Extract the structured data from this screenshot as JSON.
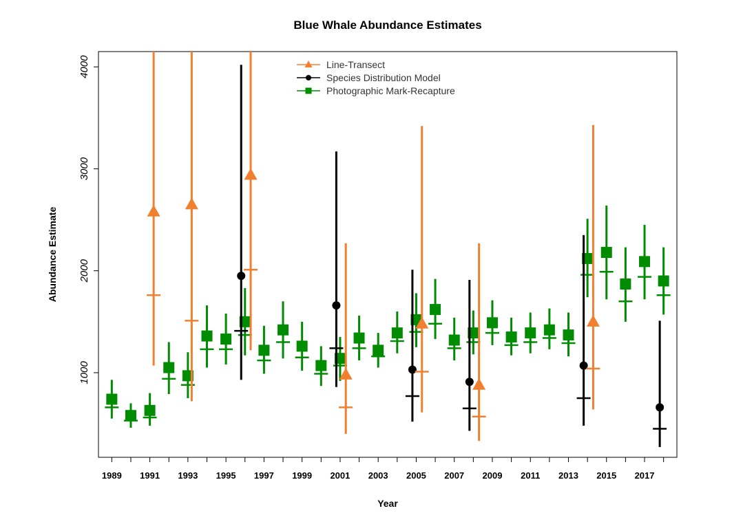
{
  "chart_data": {
    "type": "scatter",
    "title": "Blue Whale Abundance Estimates",
    "xlabel": "Year",
    "ylabel": "Abundance Estimate",
    "xlim": [
      1988.3,
      2018.7
    ],
    "ylim": [
      170,
      4150
    ],
    "xticks_labeled": [
      "1989",
      "1991",
      "1993",
      "1995",
      "1997",
      "1999",
      "2001",
      "2003",
      "2005",
      "2007",
      "2009",
      "2011",
      "2013",
      "2015",
      "2017"
    ],
    "xticks_all": [
      1989,
      1990,
      1991,
      1992,
      1993,
      1994,
      1995,
      1996,
      1997,
      1998,
      1999,
      2000,
      2001,
      2002,
      2003,
      2004,
      2005,
      2006,
      2007,
      2008,
      2009,
      2010,
      2011,
      2012,
      2013,
      2014,
      2015,
      2016,
      2017,
      2018
    ],
    "yticks": [
      1000,
      2000,
      3000,
      4000
    ],
    "legend_position": "top-center",
    "colors": {
      "line_transect": "#F08030",
      "sdm": "#000000",
      "pmr": "#008C00"
    },
    "series": [
      {
        "name": "Line-Transect",
        "marker": "triangle",
        "color": "#F08030",
        "points": [
          {
            "x": 1991.2,
            "y": 2580,
            "lo": 1070,
            "hi": 4150,
            "mid": 1760
          },
          {
            "x": 1993.2,
            "y": 2650,
            "lo": 720,
            "hi": 4150,
            "mid": 1510
          },
          {
            "x": 1996.3,
            "y": 2940,
            "lo": 1220,
            "hi": 4150,
            "mid": 2010
          },
          {
            "x": 2001.3,
            "y": 980,
            "lo": 400,
            "hi": 2270,
            "mid": 660
          },
          {
            "x": 2005.3,
            "y": 1480,
            "lo": 610,
            "hi": 3420,
            "mid": 1010
          },
          {
            "x": 2008.3,
            "y": 880,
            "lo": 330,
            "hi": 2270,
            "mid": 570
          },
          {
            "x": 2014.3,
            "y": 1500,
            "lo": 640,
            "hi": 3430,
            "mid": 1040
          }
        ]
      },
      {
        "name": "Species Distribution Model",
        "marker": "circle",
        "color": "#000000",
        "points": [
          {
            "x": 1995.8,
            "y": 1950,
            "lo": 930,
            "hi": 4020,
            "mid": 1410
          },
          {
            "x": 2000.8,
            "y": 1660,
            "lo": 860,
            "hi": 3170,
            "mid": 1240
          },
          {
            "x": 2004.8,
            "y": 1030,
            "lo": 520,
            "hi": 2010,
            "mid": 770
          },
          {
            "x": 2007.8,
            "y": 910,
            "lo": 430,
            "hi": 1910,
            "mid": 650
          },
          {
            "x": 2013.8,
            "y": 1070,
            "lo": 480,
            "hi": 2350,
            "mid": 750
          },
          {
            "x": 2017.8,
            "y": 660,
            "lo": 270,
            "hi": 1510,
            "mid": 450
          }
        ]
      },
      {
        "name": "Photographic Mark-Recapture",
        "marker": "square",
        "color": "#008C00",
        "points": [
          {
            "x": 1989,
            "y": 740,
            "lo": 550,
            "hi": 930,
            "mid": 660
          },
          {
            "x": 1990,
            "y": 580,
            "lo": 460,
            "hi": 700,
            "mid": 530
          },
          {
            "x": 1991,
            "y": 630,
            "lo": 480,
            "hi": 800,
            "mid": 560
          },
          {
            "x": 1992,
            "y": 1050,
            "lo": 790,
            "hi": 1300,
            "mid": 940
          },
          {
            "x": 1993,
            "y": 970,
            "lo": 750,
            "hi": 1200,
            "mid": 880
          },
          {
            "x": 1994,
            "y": 1360,
            "lo": 1050,
            "hi": 1660,
            "mid": 1230
          },
          {
            "x": 1995,
            "y": 1330,
            "lo": 1080,
            "hi": 1580,
            "mid": 1230
          },
          {
            "x": 1996,
            "y": 1500,
            "lo": 1170,
            "hi": 1830,
            "mid": 1370
          },
          {
            "x": 1997,
            "y": 1220,
            "lo": 990,
            "hi": 1460,
            "mid": 1120
          },
          {
            "x": 1998,
            "y": 1420,
            "lo": 1140,
            "hi": 1700,
            "mid": 1300
          },
          {
            "x": 1999,
            "y": 1260,
            "lo": 1020,
            "hi": 1500,
            "mid": 1150
          },
          {
            "x": 2000,
            "y": 1070,
            "lo": 870,
            "hi": 1260,
            "mid": 990
          },
          {
            "x": 2001,
            "y": 1140,
            "lo": 920,
            "hi": 1350,
            "mid": 1070
          },
          {
            "x": 2002,
            "y": 1340,
            "lo": 1120,
            "hi": 1560,
            "mid": 1240
          },
          {
            "x": 2003,
            "y": 1220,
            "lo": 1050,
            "hi": 1390,
            "mid": 1160
          },
          {
            "x": 2004,
            "y": 1390,
            "lo": 1190,
            "hi": 1600,
            "mid": 1310
          },
          {
            "x": 2005,
            "y": 1520,
            "lo": 1250,
            "hi": 1780,
            "mid": 1400
          },
          {
            "x": 2006,
            "y": 1620,
            "lo": 1330,
            "hi": 1920,
            "mid": 1480
          },
          {
            "x": 2007,
            "y": 1320,
            "lo": 1120,
            "hi": 1540,
            "mid": 1240
          },
          {
            "x": 2008,
            "y": 1390,
            "lo": 1180,
            "hi": 1610,
            "mid": 1300
          },
          {
            "x": 2009,
            "y": 1490,
            "lo": 1270,
            "hi": 1710,
            "mid": 1390
          },
          {
            "x": 2010,
            "y": 1350,
            "lo": 1170,
            "hi": 1540,
            "mid": 1270
          },
          {
            "x": 2011,
            "y": 1390,
            "lo": 1190,
            "hi": 1590,
            "mid": 1300
          },
          {
            "x": 2012,
            "y": 1420,
            "lo": 1230,
            "hi": 1630,
            "mid": 1340
          },
          {
            "x": 2013,
            "y": 1370,
            "lo": 1160,
            "hi": 1590,
            "mid": 1290
          },
          {
            "x": 2014,
            "y": 2120,
            "lo": 1740,
            "hi": 2510,
            "mid": 1960
          },
          {
            "x": 2015,
            "y": 2180,
            "lo": 1720,
            "hi": 2640,
            "mid": 1990
          },
          {
            "x": 2016,
            "y": 1870,
            "lo": 1500,
            "hi": 2230,
            "mid": 1700
          },
          {
            "x": 2017,
            "y": 2090,
            "lo": 1720,
            "hi": 2450,
            "mid": 1940
          },
          {
            "x": 2018,
            "y": 1900,
            "lo": 1570,
            "hi": 2230,
            "mid": 1760
          }
        ]
      }
    ]
  }
}
